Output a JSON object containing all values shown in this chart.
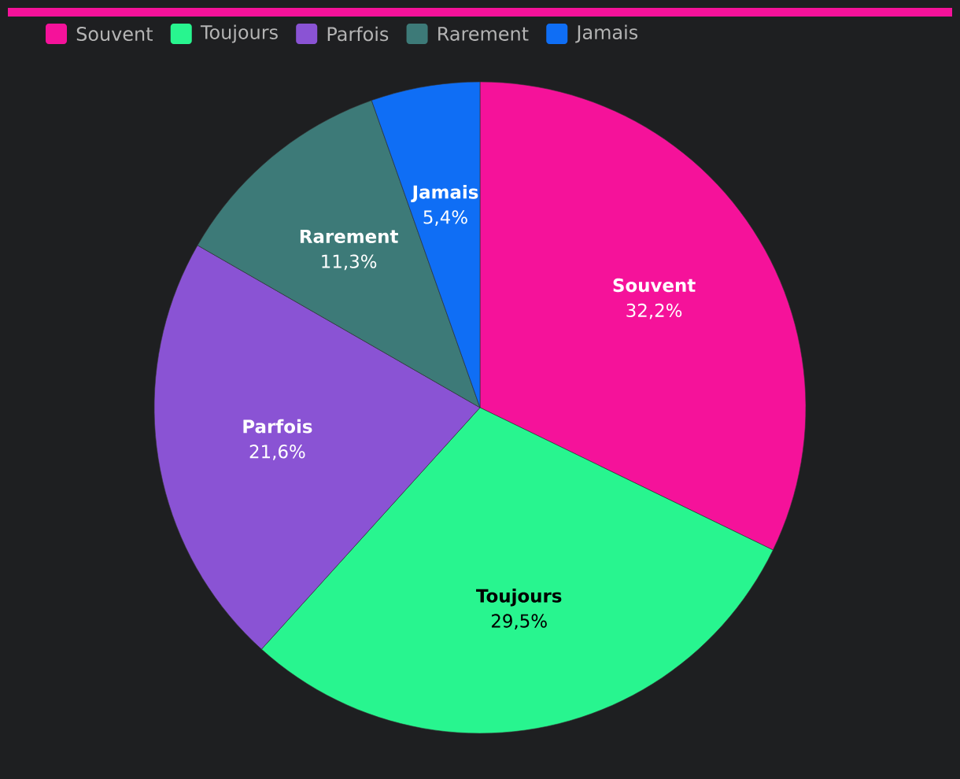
{
  "chart_data": {
    "type": "pie",
    "categories": [
      "Souvent",
      "Toujours",
      "Parfois",
      "Rarement",
      "Jamais"
    ],
    "values": [
      32.2,
      29.5,
      21.6,
      11.3,
      5.4
    ],
    "colors": [
      "#f5129a",
      "#28f58f",
      "#8a53d4",
      "#3d7a78",
      "#0f6ef5"
    ],
    "value_labels": [
      "32,2%",
      "29,5%",
      "21,6%",
      "11,3%",
      "5,4%"
    ],
    "legend": "top left"
  }
}
